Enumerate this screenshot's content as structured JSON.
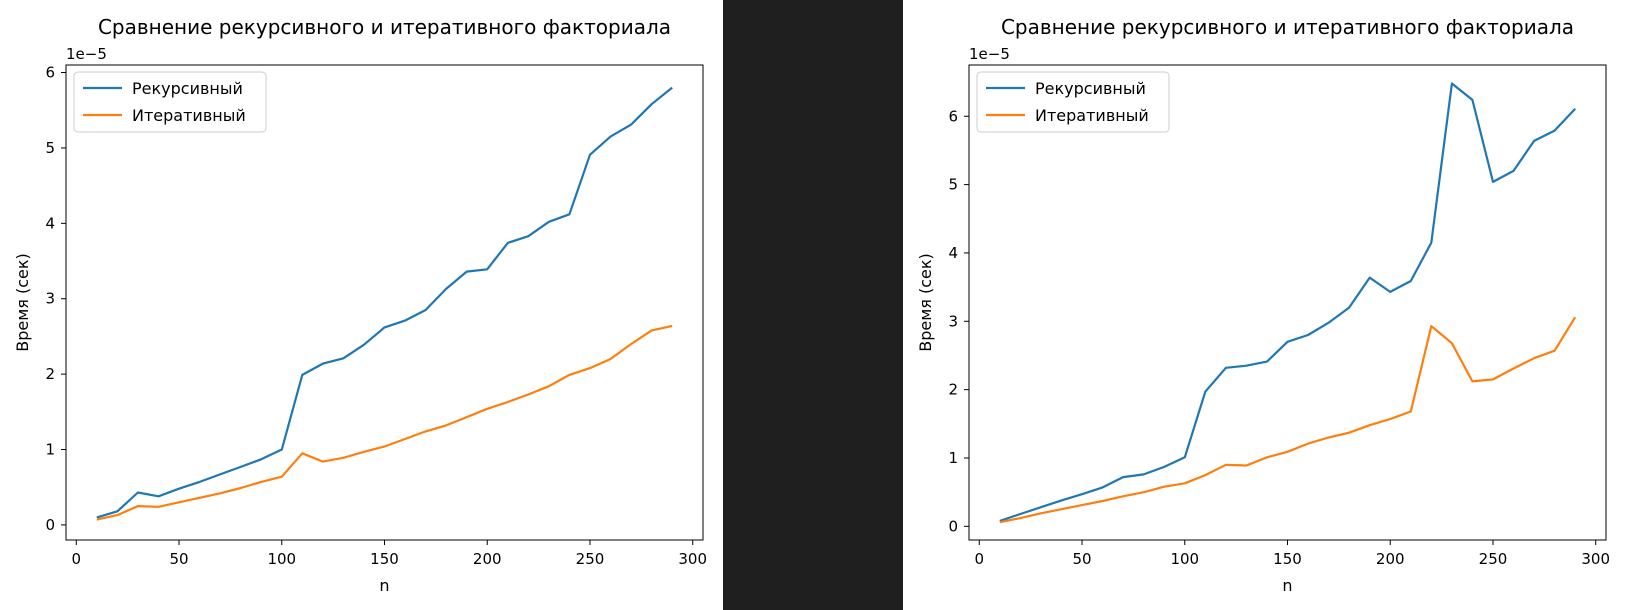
{
  "chart_data": [
    {
      "type": "line",
      "title": "Сравнение рекурсивного и итеративного факториала",
      "xlabel": "n",
      "ylabel": "Время (сек)",
      "y_multiplier_label": "1e−5",
      "x": [
        10,
        20,
        30,
        40,
        50,
        60,
        70,
        80,
        90,
        100,
        110,
        120,
        130,
        140,
        150,
        160,
        170,
        180,
        190,
        200,
        210,
        220,
        230,
        240,
        250,
        260,
        270,
        280,
        290
      ],
      "xlim": [
        -5,
        305
      ],
      "ylim": [
        -0.2,
        6.1
      ],
      "xticks": [
        0,
        50,
        100,
        150,
        200,
        250,
        300
      ],
      "yticks": [
        0,
        1,
        2,
        3,
        4,
        5,
        6
      ],
      "grid": false,
      "legend_position": "top-left",
      "series": [
        {
          "name": "Рекурсивный",
          "color": "#1f77b4",
          "values": [
            0.1,
            0.18,
            0.43,
            0.38,
            0.48,
            0.57,
            0.67,
            0.77,
            0.87,
            1.0,
            1.99,
            2.14,
            2.21,
            2.39,
            2.62,
            2.71,
            2.85,
            3.13,
            3.36,
            3.39,
            3.74,
            3.83,
            4.02,
            4.12,
            4.91,
            5.15,
            5.31,
            5.58,
            5.8
          ]
        },
        {
          "name": "Итеративный",
          "color": "#ff7f0e",
          "values": [
            0.07,
            0.13,
            0.25,
            0.24,
            0.3,
            0.36,
            0.42,
            0.49,
            0.57,
            0.64,
            0.95,
            0.84,
            0.89,
            0.97,
            1.04,
            1.14,
            1.24,
            1.32,
            1.43,
            1.54,
            1.63,
            1.73,
            1.84,
            1.99,
            2.08,
            2.2,
            2.4,
            2.58,
            2.64
          ]
        }
      ]
    },
    {
      "type": "line",
      "title": "Сравнение рекурсивного и итеративного факториала",
      "xlabel": "n",
      "ylabel": "Время (сек)",
      "y_multiplier_label": "1e−5",
      "x": [
        10,
        20,
        30,
        40,
        50,
        60,
        70,
        80,
        90,
        100,
        110,
        120,
        130,
        140,
        150,
        160,
        170,
        180,
        190,
        200,
        210,
        220,
        230,
        240,
        250,
        260,
        270,
        280,
        290
      ],
      "xlim": [
        -5,
        305
      ],
      "ylim": [
        -0.2,
        6.75
      ],
      "xticks": [
        0,
        50,
        100,
        150,
        200,
        250,
        300
      ],
      "yticks": [
        0,
        1,
        2,
        3,
        4,
        5,
        6
      ],
      "grid": false,
      "legend_position": "top-left",
      "series": [
        {
          "name": "Рекурсивный",
          "color": "#1f77b4",
          "values": [
            0.08,
            0.18,
            0.28,
            0.38,
            0.47,
            0.57,
            0.72,
            0.76,
            0.87,
            1.01,
            1.97,
            2.32,
            2.35,
            2.41,
            2.7,
            2.8,
            2.98,
            3.2,
            3.64,
            3.43,
            3.59,
            4.15,
            6.48,
            6.24,
            5.04,
            5.2,
            5.64,
            5.79,
            6.11
          ]
        },
        {
          "name": "Итеративный",
          "color": "#ff7f0e",
          "values": [
            0.06,
            0.12,
            0.19,
            0.25,
            0.31,
            0.37,
            0.44,
            0.5,
            0.58,
            0.63,
            0.75,
            0.9,
            0.89,
            1.01,
            1.09,
            1.21,
            1.3,
            1.37,
            1.48,
            1.57,
            1.68,
            2.93,
            2.68,
            2.12,
            2.15,
            2.31,
            2.46,
            2.57,
            3.06
          ]
        }
      ]
    }
  ]
}
